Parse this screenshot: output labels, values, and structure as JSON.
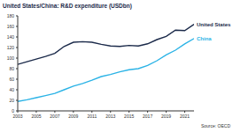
{
  "chart_data": {
    "type": "line",
    "title": "United States/China: R&D expenditure (USDbn)",
    "source": "Source: OECD",
    "x": [
      2003,
      2004,
      2005,
      2006,
      2007,
      2008,
      2009,
      2010,
      2011,
      2012,
      2013,
      2014,
      2015,
      2016,
      2017,
      2018,
      2019,
      2020,
      2021,
      2022
    ],
    "series": [
      {
        "name": "United States",
        "color": "#1b2a4a",
        "values": [
          88,
          93,
          98,
          103,
          109,
          122,
          130,
          131,
          130,
          126,
          123,
          122,
          124,
          123,
          127,
          135,
          141,
          153,
          152,
          164
        ]
      },
      {
        "name": "China",
        "color": "#2bb3e6",
        "values": [
          18,
          21,
          25,
          29,
          33,
          40,
          47,
          52,
          58,
          65,
          69,
          74,
          78,
          80,
          86,
          95,
          106,
          115,
          127,
          137
        ]
      }
    ],
    "xlim": [
      2003,
      2022
    ],
    "xticks": [
      2003,
      2005,
      2007,
      2009,
      2011,
      2013,
      2015,
      2017,
      2019,
      2021
    ],
    "ylim": [
      0,
      180
    ],
    "yticks": [
      0,
      20,
      40,
      60,
      80,
      100,
      120,
      140,
      160,
      180
    ],
    "grid": false
  }
}
